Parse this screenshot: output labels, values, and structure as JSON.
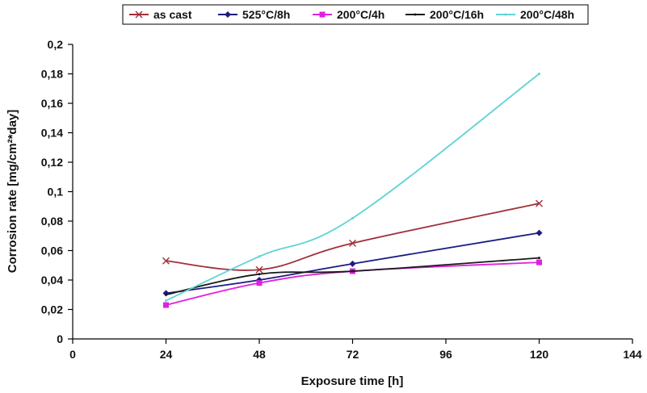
{
  "chart_data": {
    "type": "line",
    "xlabel": "Exposure time [h]",
    "ylabel": "Corrosion rate [mg/cm²*day]",
    "xlim": [
      0,
      144
    ],
    "ylim": [
      0,
      0.2
    ],
    "x_ticks": [
      0,
      24,
      48,
      72,
      96,
      120,
      144
    ],
    "x_tick_labels": [
      "0",
      "24",
      "48",
      "72",
      "96",
      "120",
      "144"
    ],
    "y_ticks": [
      0,
      0.02,
      0.04,
      0.06,
      0.08,
      0.1,
      0.12,
      0.14,
      0.16,
      0.18,
      0.2
    ],
    "y_tick_labels": [
      "0",
      "0,02",
      "0,04",
      "0,06",
      "0,08",
      "0,1",
      "0,12",
      "0,14",
      "0,16",
      "0,18",
      "0,2"
    ],
    "grid": false,
    "legend_position": "top",
    "x": [
      24,
      48,
      72,
      120
    ],
    "series": [
      {
        "name": "as cast",
        "color": "#a0303a",
        "marker": "x",
        "values": [
          0.053,
          0.047,
          0.065,
          0.092
        ]
      },
      {
        "name": "525°C/8h",
        "color": "#1c1c80",
        "marker": "diamond",
        "values": [
          0.031,
          0.04,
          0.051,
          0.072
        ]
      },
      {
        "name": "200°C/4h",
        "color": "#e020e0",
        "marker": "square",
        "values": [
          0.023,
          0.038,
          0.046,
          0.052
        ]
      },
      {
        "name": "200°C/16h",
        "color": "#1a1a1a",
        "marker": "none",
        "values": [
          0.03,
          0.044,
          0.046,
          0.055
        ]
      },
      {
        "name": "200°C/48h",
        "color": "#5fd4d6",
        "marker": "none",
        "values": [
          0.026,
          0.056,
          0.082,
          0.18
        ]
      }
    ]
  }
}
